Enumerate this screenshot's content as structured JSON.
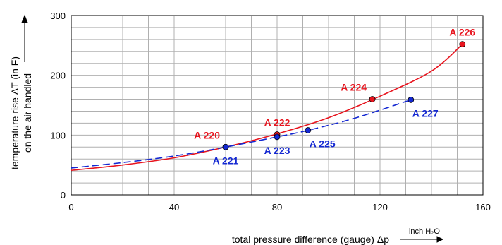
{
  "chart_data": {
    "type": "line",
    "xlabel": "total pressure difference (gauge) Δp",
    "xunit": "inch H₂O",
    "ylabel_line1": "temperature rise ΔT (in F)",
    "ylabel_line2": "on the air handled",
    "xlim": [
      0,
      160
    ],
    "ylim": [
      0,
      300
    ],
    "x_ticks": [
      "0",
      "40",
      "80",
      "120",
      "160"
    ],
    "y_ticks": [
      "0",
      "100",
      "200",
      "300"
    ],
    "grid": true,
    "colors": {
      "red": "#e8141e",
      "blue": "#1428d2"
    },
    "series": [
      {
        "style": "solid",
        "color": "red",
        "curve": [
          [
            0,
            41
          ],
          [
            20,
            50
          ],
          [
            40,
            62
          ],
          [
            60,
            80
          ],
          [
            80,
            102
          ],
          [
            100,
            129
          ],
          [
            120,
            165
          ],
          [
            140,
            207
          ],
          [
            152,
            252
          ]
        ],
        "points": [
          {
            "x": 60,
            "y": 80,
            "label": "A 220",
            "pos": "above-left"
          },
          {
            "x": 80,
            "y": 101,
            "label": "A 222",
            "pos": "above"
          },
          {
            "x": 117,
            "y": 160,
            "label": "A 224",
            "pos": "above-left"
          },
          {
            "x": 152,
            "y": 252,
            "label": "A 226",
            "pos": "above"
          }
        ]
      },
      {
        "style": "dashed",
        "color": "blue",
        "curve": [
          [
            0,
            45
          ],
          [
            20,
            54
          ],
          [
            40,
            65
          ],
          [
            60,
            80
          ],
          [
            80,
            97
          ],
          [
            92,
            108
          ],
          [
            110,
            128
          ],
          [
            132,
            159
          ]
        ],
        "points": [
          {
            "x": 60,
            "y": 80,
            "label": "A 221",
            "pos": "below"
          },
          {
            "x": 80,
            "y": 97,
            "label": "A 223",
            "pos": "below"
          },
          {
            "x": 92,
            "y": 108,
            "label": "A 225",
            "pos": "below-right"
          },
          {
            "x": 132,
            "y": 159,
            "label": "A 227",
            "pos": "below-right"
          }
        ]
      }
    ]
  }
}
